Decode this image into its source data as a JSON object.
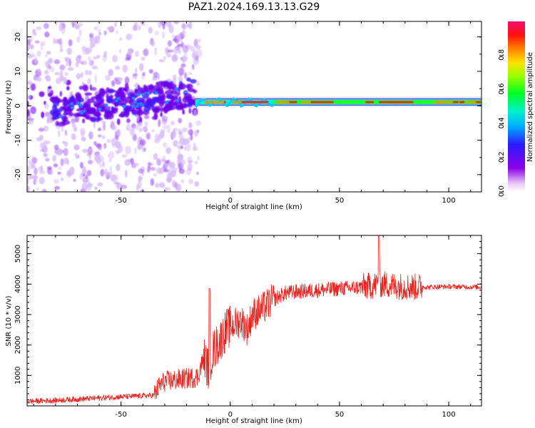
{
  "title": "PAZ1.2024.169.13.13.G29",
  "chart_data": [
    {
      "type": "heatmap",
      "xlabel": "Height of straight line (km)",
      "ylabel": "Frequency (Hz)",
      "xlim": [
        -93,
        115
      ],
      "ylim": [
        -25,
        24.5
      ],
      "xticks": [
        -50,
        0,
        50,
        100
      ],
      "yticks": [
        -20,
        -10,
        0,
        10,
        20
      ],
      "colorbar": {
        "label": "Normalized spectral amplitude",
        "range": [
          0,
          1
        ],
        "ticks": [
          0.0,
          0.2,
          0.4,
          0.6,
          0.8
        ],
        "colormap": "rainbow"
      },
      "ridge": {
        "center_frequency_hz": 1.0,
        "coherent_from_km": -16,
        "strong_from_km": 20
      }
    },
    {
      "type": "line",
      "xlabel": "Height of straight line (km)",
      "ylabel": "SNR (10 * v/v)",
      "xlim": [
        -93,
        115
      ],
      "ylim": [
        0,
        5600
      ],
      "xticks": [
        -50,
        0,
        50,
        100
      ],
      "yticks": [
        1000,
        2000,
        3000,
        4000,
        5000
      ],
      "line_color": "#e8221e",
      "series": [
        {
          "x": [
            -93,
            -80,
            -70,
            -60,
            -50,
            -40,
            -35,
            -32,
            -30,
            -25,
            -20,
            -15,
            -12,
            -10,
            -8,
            -5,
            -2,
            0,
            2,
            5,
            8,
            10,
            15,
            20,
            25,
            30,
            40,
            50,
            60,
            65,
            68,
            70,
            75,
            80,
            85,
            88,
            90,
            100,
            115
          ],
          "y": [
            150,
            180,
            220,
            260,
            300,
            330,
            350,
            700,
            800,
            850,
            900,
            950,
            1600,
            1200,
            1800,
            2100,
            2500,
            2600,
            2700,
            2800,
            2500,
            3000,
            3200,
            3500,
            3700,
            3750,
            3800,
            3850,
            3900,
            3950,
            4000,
            4000,
            3950,
            3920,
            3900,
            3920,
            3900,
            3920,
            3900
          ]
        }
      ]
    }
  ]
}
